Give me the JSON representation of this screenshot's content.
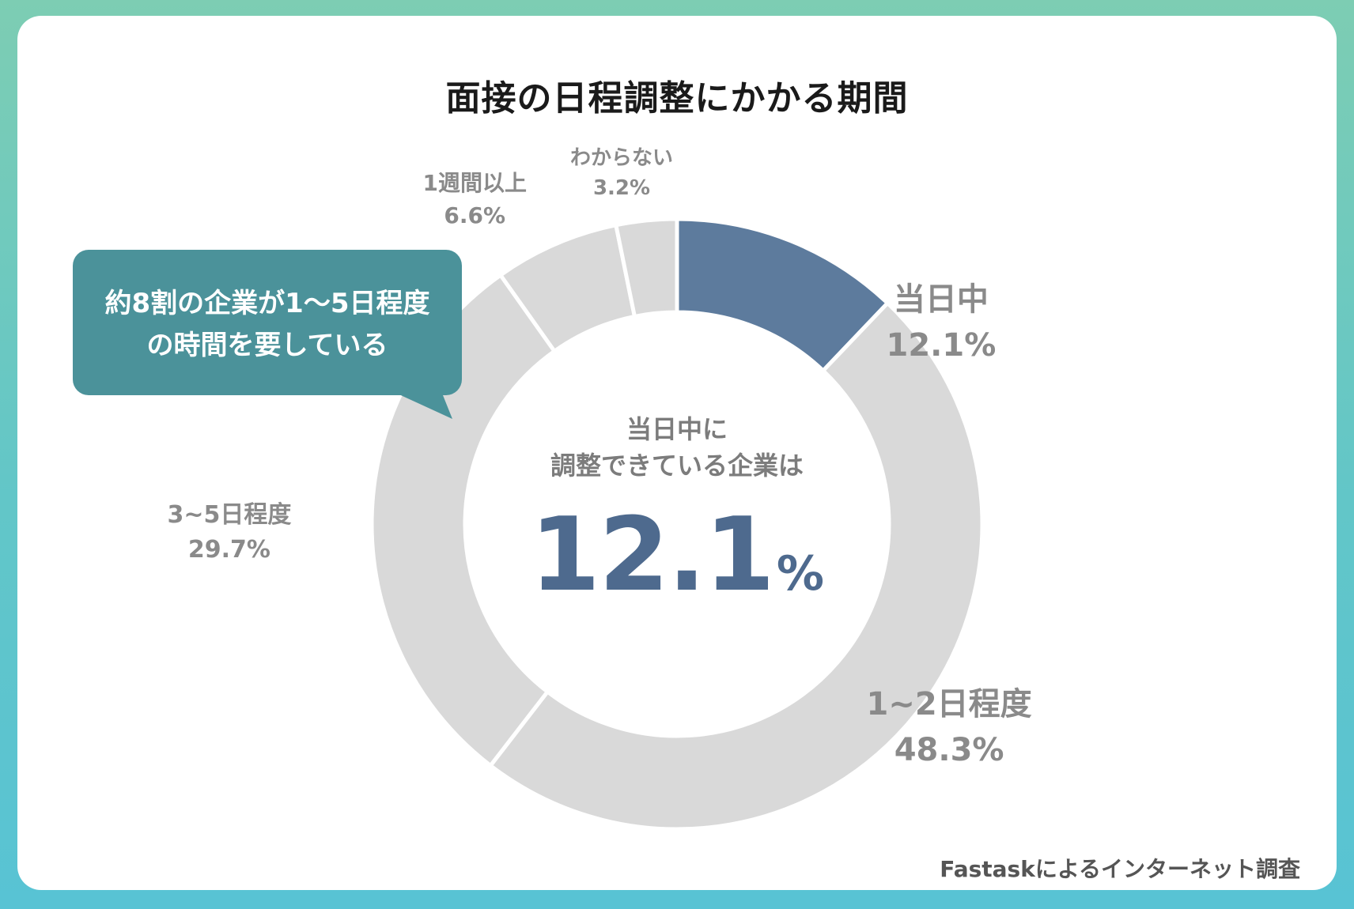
{
  "title": "面接の日程調整にかかる期間",
  "callout": {
    "line1": "約8割の企業が1〜5日程度",
    "line2": "の時間を要している"
  },
  "center": {
    "caption_line1": "当日中に",
    "caption_line2": "調整できている企業は",
    "value": "12.1",
    "unit": "%"
  },
  "source": "Fastaskによるインターネット調査",
  "colors": {
    "highlight": "#5d7b9d",
    "slice": "#d9d9d9",
    "callout": "#4b929a",
    "label": "#8a8a8a"
  },
  "chart_data": {
    "type": "pie",
    "donut": true,
    "title": "面接の日程調整にかかる期間",
    "slices": [
      {
        "label": "当日中",
        "value": 12.1,
        "display": "12.1%",
        "highlight": true
      },
      {
        "label": "1~2日程度",
        "value": 48.3,
        "display": "48.3%",
        "highlight": false
      },
      {
        "label": "3~5日程度",
        "value": 29.7,
        "display": "29.7%",
        "highlight": false
      },
      {
        "label": "1週間以上",
        "value": 6.6,
        "display": "6.6%",
        "highlight": false
      },
      {
        "label": "わからない",
        "value": 3.2,
        "display": "3.2%",
        "highlight": false
      }
    ]
  }
}
